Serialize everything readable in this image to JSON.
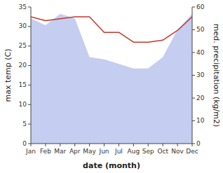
{
  "chart_data": {
    "type": "line",
    "xlabel": "date (month)",
    "ylabel": "max temp (C)",
    "y2label": "med. precipitation (kg/m2)",
    "categories": [
      "Jan",
      "Feb",
      "Mar",
      "Apr",
      "May",
      "Jun",
      "Jul",
      "Aug",
      "Sep",
      "Oct",
      "Nov",
      "Dec"
    ],
    "series": [
      {
        "type": "area",
        "axis": "y2",
        "color": "#c5cdf0",
        "values": [
          55,
          52,
          57,
          55,
          38,
          37,
          35,
          33,
          33,
          38,
          50,
          57
        ]
      },
      {
        "type": "line",
        "color": "#c0392b",
        "values": [
          32.5,
          31.5,
          32.0,
          32.5,
          32.5,
          28.5,
          28.5,
          26.0,
          26.0,
          26.5,
          29.0,
          32.5
        ]
      }
    ],
    "ylim": [
      0,
      35
    ],
    "yticks": [
      0,
      5,
      10,
      15,
      20,
      25,
      30,
      35
    ],
    "y2lim": [
      0,
      60
    ],
    "y2ticks": [
      0,
      10,
      20,
      30,
      40,
      50,
      60
    ],
    "grid": false
  }
}
